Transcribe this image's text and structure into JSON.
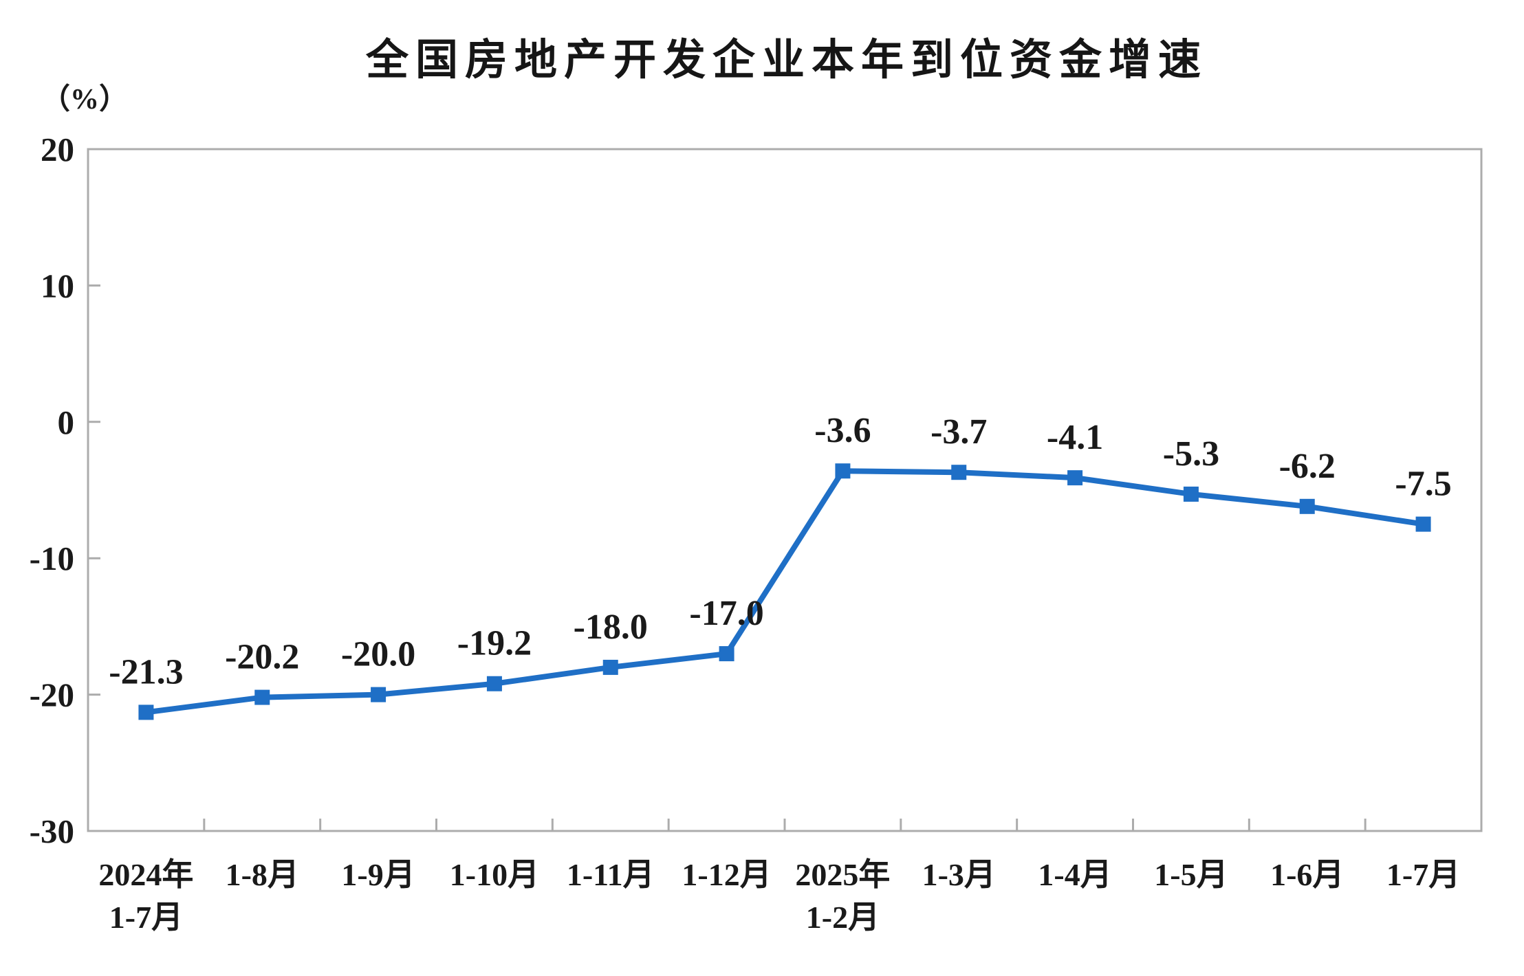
{
  "page": {
    "background": "#ffffff"
  },
  "chart_data": {
    "type": "line",
    "title": "全国房地产开发企业本年到位资金增速",
    "ylabel": "（%）",
    "xlabel": "",
    "ylim": [
      -30,
      20
    ],
    "yticks": [
      20,
      10,
      0,
      -10,
      -20,
      -30
    ],
    "grid": false,
    "legend_position": "none",
    "categories": [
      [
        "2024年",
        "1-7月"
      ],
      [
        "1-8月"
      ],
      [
        "1-9月"
      ],
      [
        "1-10月"
      ],
      [
        "1-11月"
      ],
      [
        "1-12月"
      ],
      [
        "2025年",
        "1-2月"
      ],
      [
        "1-3月"
      ],
      [
        "1-4月"
      ],
      [
        "1-5月"
      ],
      [
        "1-6月"
      ],
      [
        "1-7月"
      ]
    ],
    "series": [
      {
        "values": [
          -21.3,
          -20.2,
          -20.0,
          -19.2,
          -18.0,
          -17.0,
          -3.6,
          -3.7,
          -4.1,
          -5.3,
          -6.2,
          -7.5
        ],
        "labels": [
          "-21.3",
          "-20.2",
          "-20.0",
          "-19.2",
          "-18.0",
          "-17.0",
          "-3.6",
          "-3.7",
          "-4.1",
          "-5.3",
          "-6.2",
          "-7.5"
        ],
        "marker": "square"
      }
    ],
    "colors": {
      "line": "#1F6FC6",
      "marker": "#1F6FC6",
      "axis": "#ACACAC",
      "text": "#1a1a1a"
    }
  }
}
